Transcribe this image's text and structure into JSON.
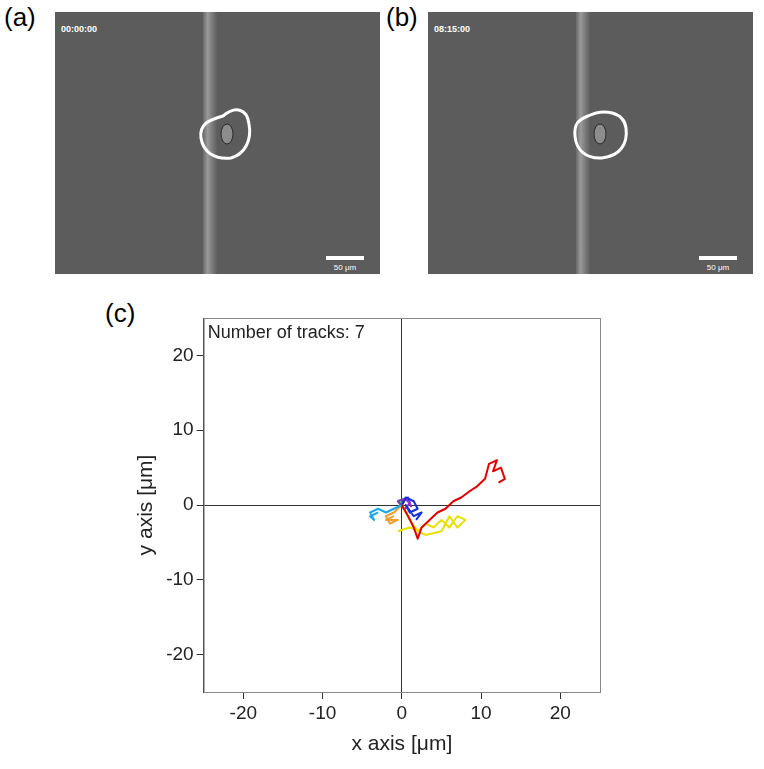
{
  "images": [
    {
      "label": "(a)",
      "timestamp": "00:00:00",
      "scale_bar": "50 μm"
    },
    {
      "label": "(b)",
      "timestamp": "08:15:00",
      "scale_bar": "50 μm"
    }
  ],
  "chart_data": {
    "type": "line",
    "label": "(c)",
    "annotation": "Number of tracks: 7",
    "x_label": "x axis [μm]",
    "y_label": "y axis [μm]",
    "xlim": [
      -25,
      25
    ],
    "ylim": [
      -25,
      25
    ],
    "xticks": [
      -20,
      -10,
      0,
      10,
      20
    ],
    "yticks": [
      -20,
      -10,
      0,
      10,
      20
    ],
    "series": [
      {
        "color": "#e00000",
        "x": [
          0,
          0.8,
          1.5,
          2.0,
          2.5,
          3.5,
          4.5,
          5.5,
          6.5,
          7.5,
          8.5,
          9.5,
          10.5,
          11,
          12,
          11.5,
          12.5,
          13,
          12.2
        ],
        "values": [
          0,
          -1.5,
          -3,
          -4.5,
          -3,
          -2,
          -1,
          -0.5,
          0.5,
          1,
          1.8,
          2.5,
          3.5,
          5.5,
          6,
          4.5,
          5,
          3.5,
          3
        ]
      },
      {
        "color": "#e8e000",
        "x": [
          0,
          1,
          2,
          3,
          4,
          5,
          6,
          7,
          8,
          7,
          6,
          5,
          3,
          1,
          -0.5
        ],
        "values": [
          0,
          -2,
          -3.5,
          -2.5,
          -3,
          -2,
          -3,
          -1.5,
          -2,
          -3,
          -1.5,
          -3.5,
          -4,
          -3,
          -3.5
        ]
      },
      {
        "color": "#1030e0",
        "x": [
          0,
          0.5,
          1.5,
          2,
          1,
          0.5,
          1.5,
          2.5,
          1.8
        ],
        "values": [
          0,
          1,
          0.5,
          -0.5,
          -1,
          0,
          -1.5,
          -1,
          -2
        ]
      },
      {
        "color": "#20a8f0",
        "x": [
          0,
          -1,
          -2,
          -3,
          -4,
          -3.5,
          -4,
          -3
        ],
        "values": [
          0,
          -0.5,
          -1,
          -0.5,
          -1,
          -2,
          -1.5,
          -1
        ]
      },
      {
        "color": "#8a30d0",
        "x": [
          0,
          0.5,
          1,
          0.3,
          -0.5,
          0.8,
          1.2
        ],
        "values": [
          0,
          0.8,
          0.2,
          -0.6,
          0.5,
          1,
          -0.3
        ]
      },
      {
        "color": "#f0a030",
        "x": [
          0,
          -1,
          -2,
          -1.5,
          -0.5,
          -2,
          -1
        ],
        "values": [
          0,
          -1,
          -1.5,
          -2.5,
          -2,
          -2,
          -1.5
        ]
      },
      {
        "color": "#20c020",
        "x": [
          0,
          -0.5,
          0.3,
          -0.3,
          0.2
        ],
        "values": [
          0,
          0.5,
          0.8,
          -0.2,
          0.3
        ]
      }
    ]
  }
}
